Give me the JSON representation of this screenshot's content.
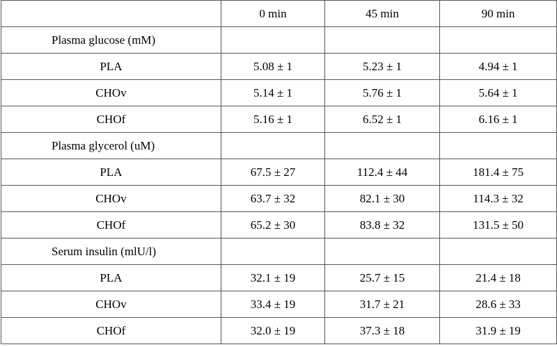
{
  "table": {
    "header": [
      "",
      "0 min",
      "45 min",
      "90 min"
    ],
    "sections": [
      {
        "label": "Plasma glucose (mM)",
        "rows": [
          {
            "group": "PLA",
            "values": [
              "5.08 ± 1",
              "5.23 ± 1",
              "4.94 ± 1"
            ]
          },
          {
            "group": "CHOv",
            "values": [
              "5.14 ± 1",
              "5.76 ± 1",
              "5.64 ± 1"
            ]
          },
          {
            "group": "CHOf",
            "values": [
              "5.16 ± 1",
              "6.52 ± 1",
              "6.16 ± 1"
            ]
          }
        ]
      },
      {
        "label": "Plasma glycerol (uM)",
        "rows": [
          {
            "group": "PLA",
            "values": [
              "67.5 ± 27",
              "112.4 ± 44",
              "181.4 ± 75"
            ]
          },
          {
            "group": "CHOv",
            "values": [
              "63.7 ± 32",
              "82.1 ± 30",
              "114.3 ± 32"
            ]
          },
          {
            "group": "CHOf",
            "values": [
              "65.2 ± 30",
              "83.8 ± 32",
              "131.5 ± 50"
            ]
          }
        ]
      },
      {
        "label": "Serum insulin (mlU/l)",
        "rows": [
          {
            "group": "PLA",
            "values": [
              "32.1 ± 19",
              "25.7 ± 15",
              "21.4 ± 18"
            ]
          },
          {
            "group": "CHOv",
            "values": [
              "33.4 ± 19",
              "31.7 ± 21",
              "28.6 ± 33"
            ]
          },
          {
            "group": "CHOf",
            "values": [
              "32.0 ± 19",
              "37.3 ± 18",
              "31.9 ± 19"
            ]
          }
        ]
      }
    ]
  }
}
